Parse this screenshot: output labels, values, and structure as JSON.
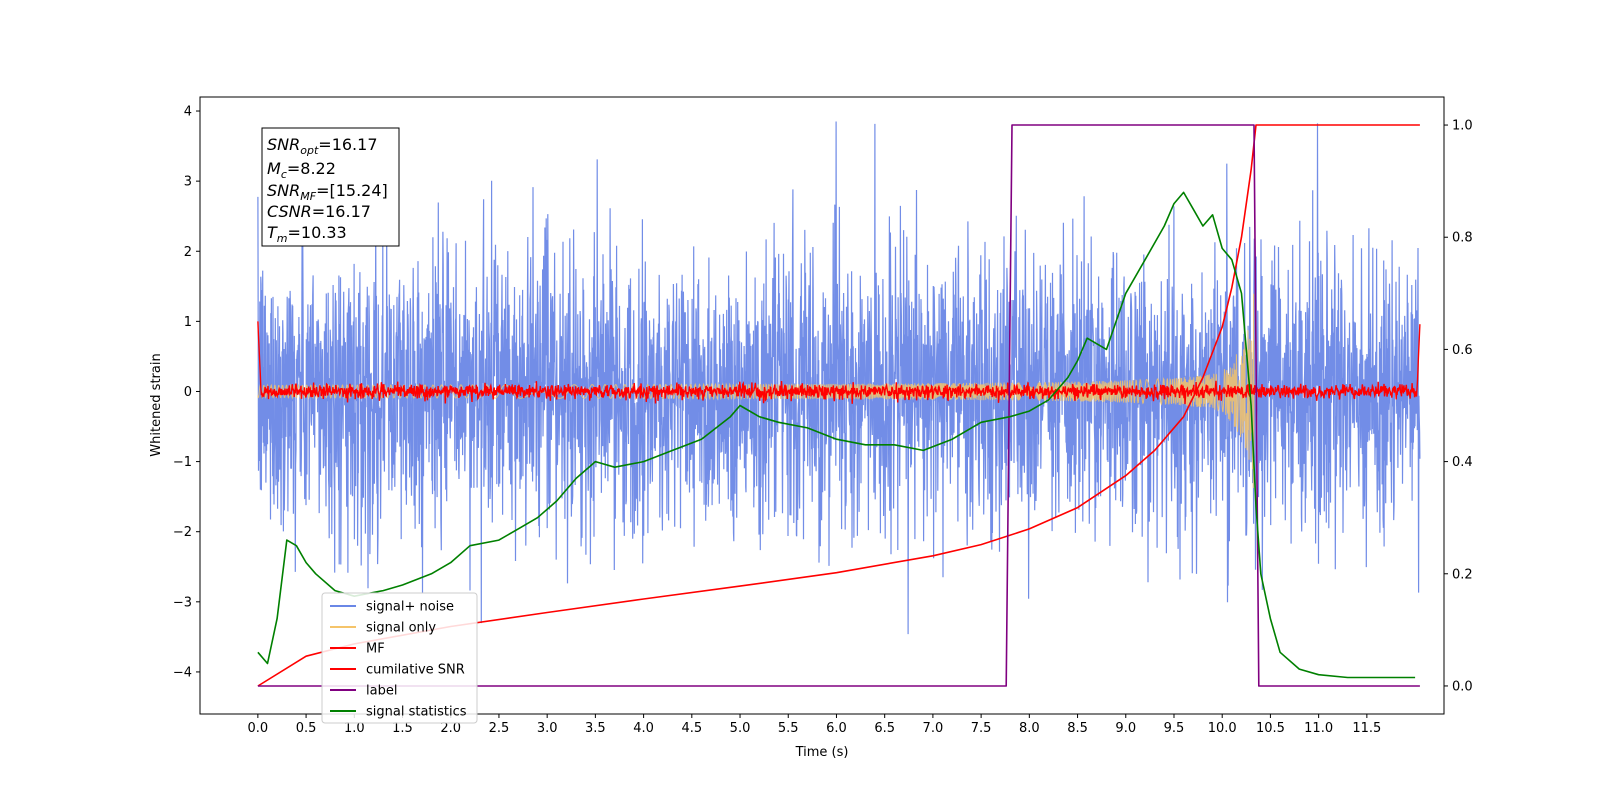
{
  "chart_data": {
    "type": "line",
    "xlabel": "Time (s)",
    "ylabel": "Whitened strain",
    "xlim": [
      -0.6,
      12.3
    ],
    "ylim": [
      -4.6,
      4.2
    ],
    "y2lim": [
      -0.05,
      1.05
    ],
    "x_ticks": [
      "0.0",
      "0.5",
      "1.0",
      "1.5",
      "2.0",
      "2.5",
      "3.0",
      "3.5",
      "4.0",
      "4.5",
      "5.0",
      "5.5",
      "6.0",
      "6.5",
      "7.0",
      "7.5",
      "8.0",
      "8.5",
      "9.0",
      "9.5",
      "10.0",
      "10.5",
      "11.0",
      "11.5"
    ],
    "y_ticks": [
      "4",
      "3",
      "2",
      "1",
      "0",
      "−1",
      "−2",
      "−3",
      "−4"
    ],
    "y2_ticks": [
      "1.0",
      "0.8",
      "0.6",
      "0.4",
      "0.2",
      "0.0"
    ],
    "legend_position": "lower-left",
    "grid": false,
    "annotation": {
      "snr_opt": {
        "name": "SNR",
        "sub": "opt",
        "value": "=16.17"
      },
      "mc": {
        "name": "M",
        "sub": "c",
        "value": "=8.22"
      },
      "snr_mf": {
        "name": "SNR",
        "sub": "MF",
        "value": "=[15.24]"
      },
      "csnr": {
        "name": "CSNR",
        "sub": "",
        "value": "=16.17"
      },
      "tm": {
        "name": "T",
        "sub": "m",
        "value": "=10.33"
      }
    },
    "series": [
      {
        "name": "signal+ noise",
        "color": "#6a87e6",
        "axis": "left",
        "kind": "noise",
        "amplitude_std": 1.0,
        "x_range": [
          0,
          12.05
        ]
      },
      {
        "name": "signal only",
        "color": "#f5c46a",
        "axis": "left",
        "kind": "chirp",
        "x_range": [
          0,
          10.33
        ],
        "amplitude_end": 1.9
      },
      {
        "name": "MF",
        "color": "#ff0000",
        "axis": "left",
        "kind": "matched_filter",
        "x_range": [
          0,
          12.05
        ]
      },
      {
        "name": "cumilative SNR",
        "color": "#ff0000",
        "axis": "right",
        "x": [
          0.0,
          0.5,
          1.0,
          2.0,
          3.0,
          4.0,
          5.0,
          6.0,
          7.0,
          7.5,
          8.0,
          8.5,
          9.0,
          9.3,
          9.6,
          9.8,
          10.0,
          10.1,
          10.2,
          10.3,
          10.35,
          11.0,
          12.05
        ],
        "y": [
          0.0,
          0.053,
          0.075,
          0.106,
          0.131,
          0.155,
          0.178,
          0.202,
          0.232,
          0.252,
          0.28,
          0.318,
          0.375,
          0.42,
          0.48,
          0.55,
          0.64,
          0.71,
          0.8,
          0.92,
          1.0,
          1.0,
          1.0
        ]
      },
      {
        "name": "label",
        "color": "#800080",
        "axis": "right",
        "x": [
          0.0,
          7.76,
          7.82,
          10.33,
          10.38,
          12.05
        ],
        "y": [
          0.0,
          0.0,
          1.0,
          1.0,
          0.0,
          0.0
        ]
      },
      {
        "name": "signal statistics",
        "color": "#008000",
        "axis": "right",
        "x": [
          0.0,
          0.1,
          0.2,
          0.3,
          0.4,
          0.5,
          0.6,
          0.8,
          1.0,
          1.3,
          1.5,
          1.8,
          2.0,
          2.2,
          2.5,
          2.7,
          2.9,
          3.1,
          3.3,
          3.5,
          3.7,
          4.0,
          4.3,
          4.6,
          4.9,
          5.0,
          5.2,
          5.4,
          5.7,
          6.0,
          6.3,
          6.6,
          6.9,
          7.2,
          7.5,
          7.8,
          8.0,
          8.2,
          8.4,
          8.5,
          8.6,
          8.8,
          9.0,
          9.2,
          9.4,
          9.5,
          9.6,
          9.7,
          9.8,
          9.9,
          10.0,
          10.1,
          10.2,
          10.3,
          10.35,
          10.4,
          10.5,
          10.6,
          10.8,
          11.0,
          11.3,
          11.6,
          12.0
        ],
        "y": [
          0.06,
          0.04,
          0.12,
          0.26,
          0.25,
          0.22,
          0.2,
          0.17,
          0.16,
          0.17,
          0.18,
          0.2,
          0.22,
          0.25,
          0.26,
          0.28,
          0.3,
          0.33,
          0.37,
          0.4,
          0.39,
          0.4,
          0.42,
          0.44,
          0.48,
          0.5,
          0.48,
          0.47,
          0.46,
          0.44,
          0.43,
          0.43,
          0.42,
          0.44,
          0.47,
          0.48,
          0.49,
          0.51,
          0.55,
          0.58,
          0.62,
          0.6,
          0.7,
          0.76,
          0.82,
          0.86,
          0.88,
          0.85,
          0.82,
          0.84,
          0.78,
          0.76,
          0.7,
          0.5,
          0.32,
          0.2,
          0.12,
          0.06,
          0.03,
          0.02,
          0.015,
          0.015,
          0.015
        ]
      }
    ]
  }
}
